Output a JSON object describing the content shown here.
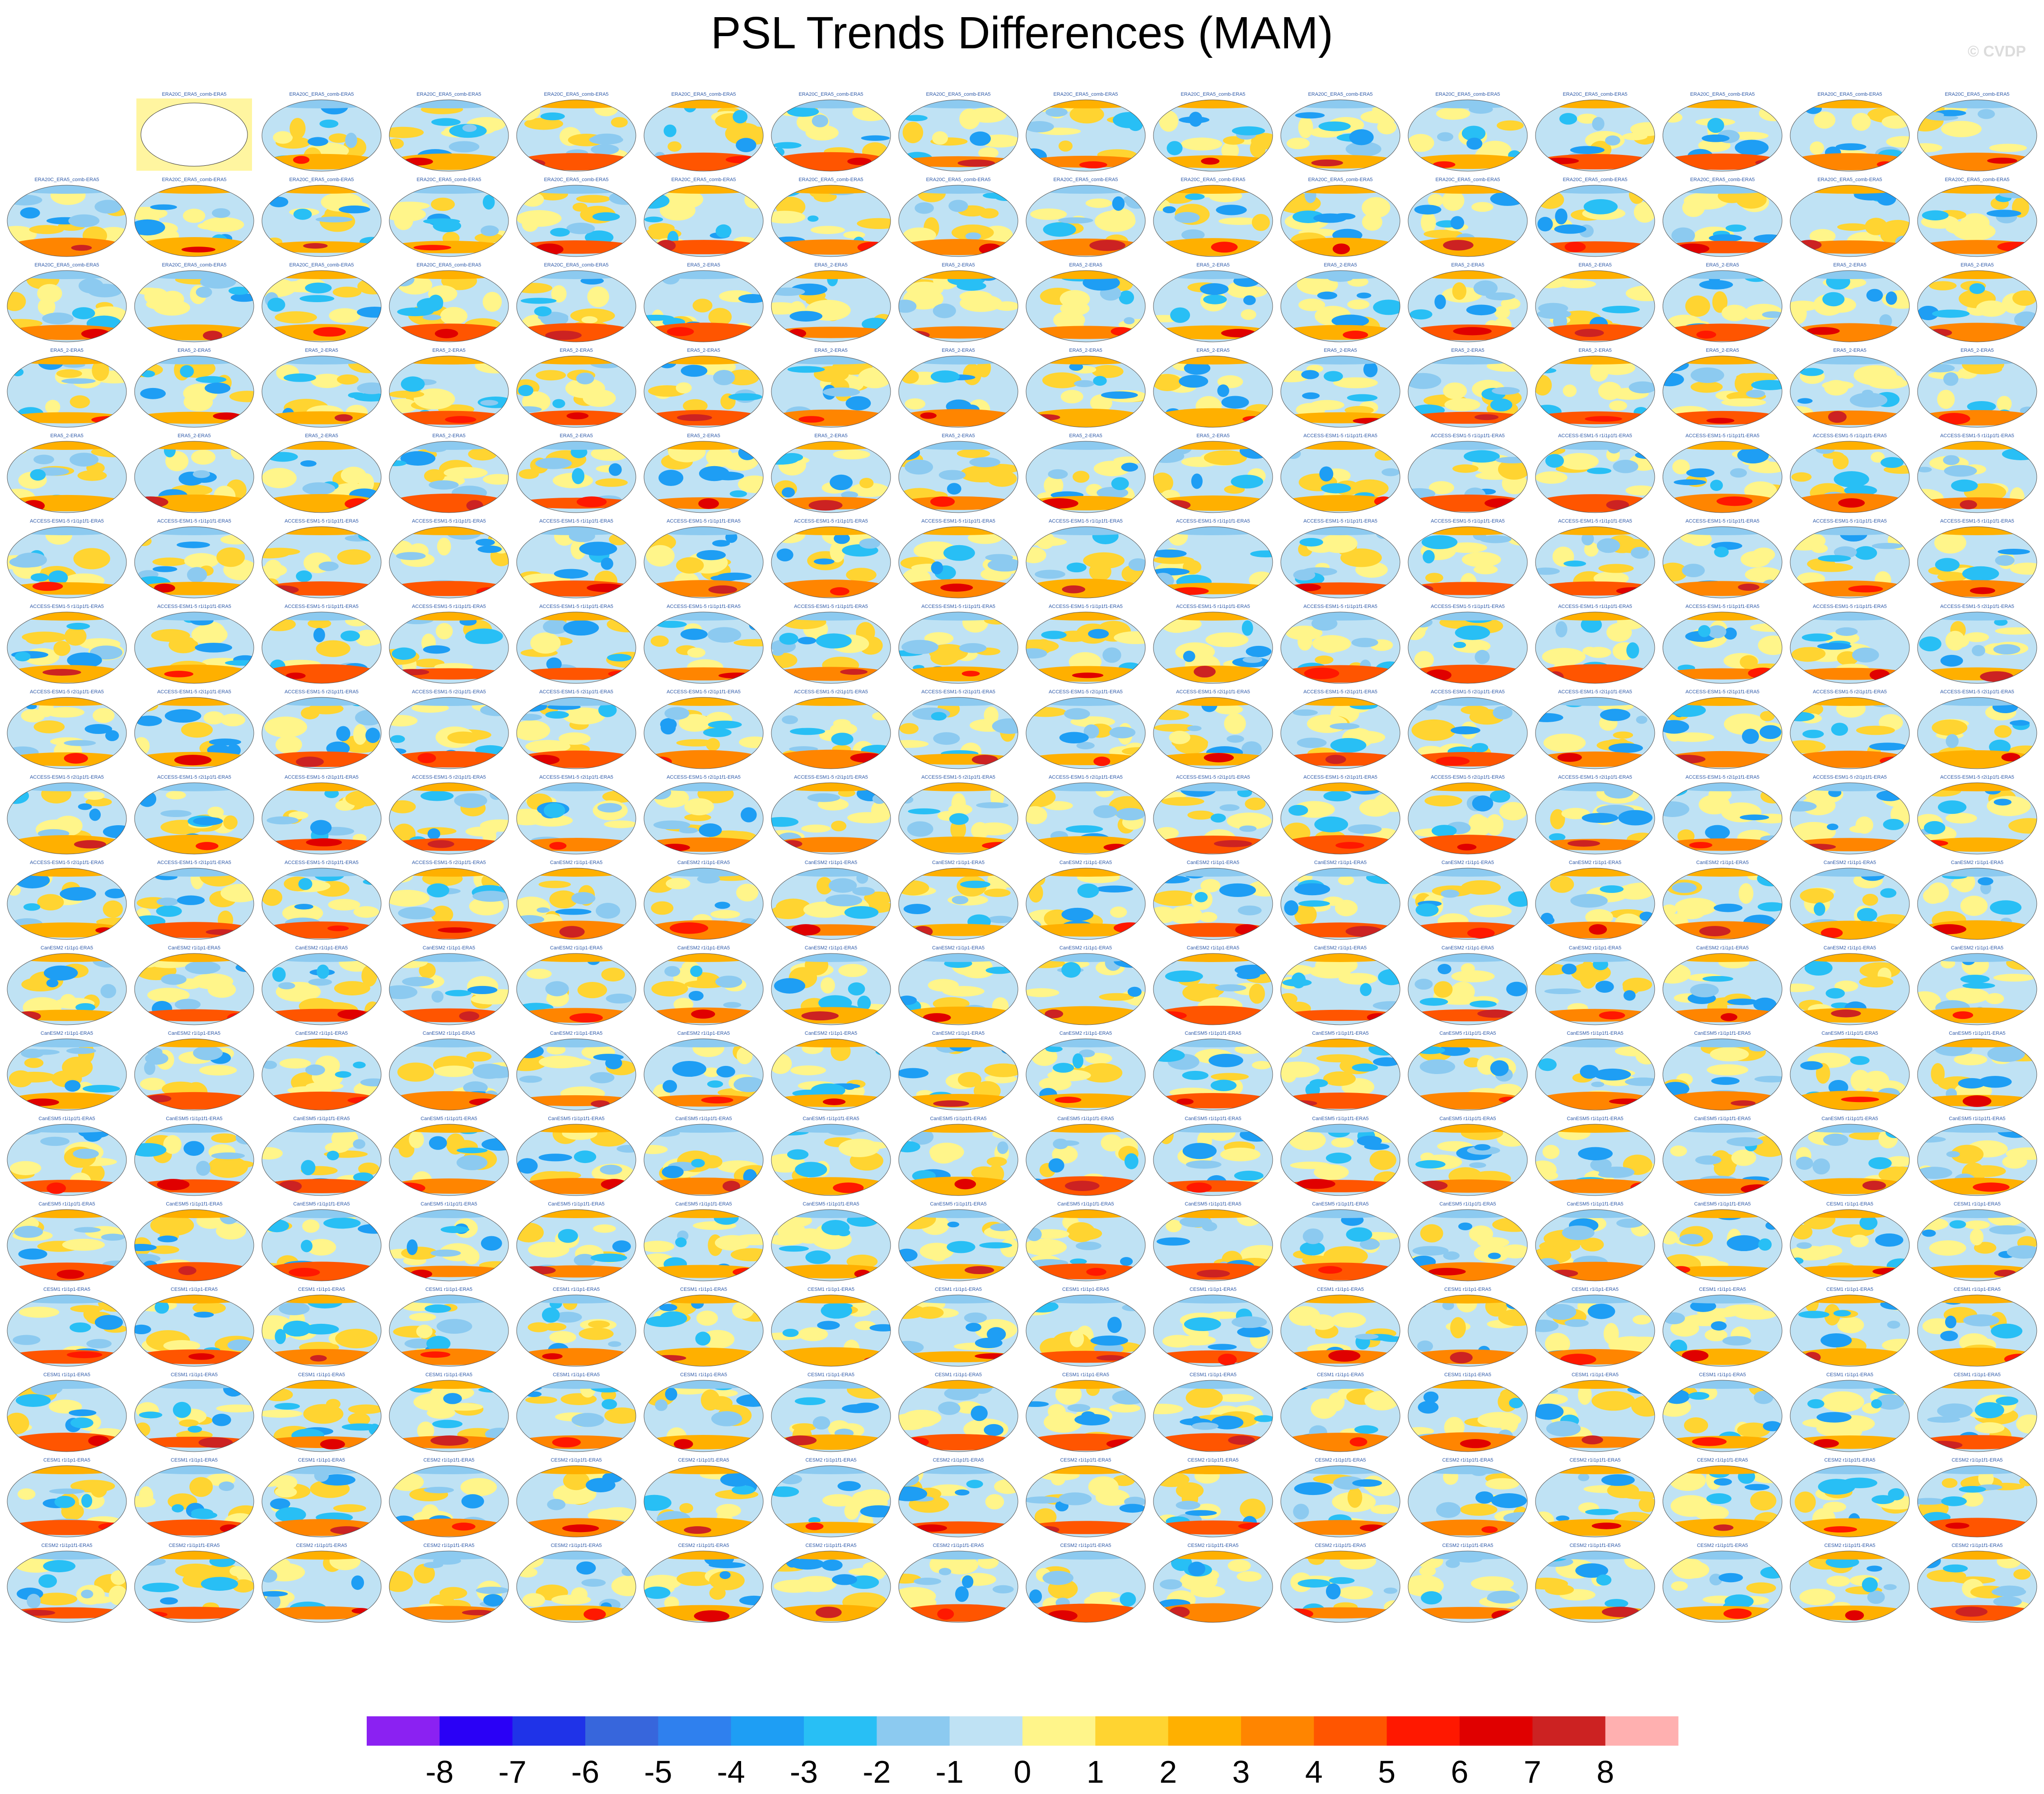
{
  "title": "PSL Trends Differences (MAM)",
  "watermark": "© CVDP",
  "chart_data": {
    "type": "heatmap",
    "title": "PSL Trends Differences (MAM)",
    "description_of_panels": "Grid of global map panels (18 rows x 16 columns) showing sea level pressure trend differences relative to ERA5",
    "first_panel": {
      "label": "ERA20C_ERA5_comb-ERA5",
      "background": "#fff5a0"
    },
    "panel_labels_visible": [
      "ERA20C_ERA5_comb-ERA5",
      "ERA5_2-ERA5",
      "ACCESS-ESM1-5 r1i1p1f1-ERA5",
      "ACCESS-ESM1-5 r2i1p1f1-ERA5",
      "CanESM2 r1i1p1-ERA5",
      "CanESM5 r1i1p1f1-ERA5",
      "CESM1 r1i1p1-ERA5",
      "CESM2 r1i1p1f1-ERA5"
    ],
    "colorbar": {
      "tick_labels": [
        "-8",
        "-7",
        "-6",
        "-5",
        "-4",
        "-3",
        "-2",
        "-1",
        "0",
        "1",
        "2",
        "3",
        "4",
        "5",
        "6",
        "7",
        "8"
      ],
      "colors": [
        "#8b21f2",
        "#2a00f6",
        "#1f33e8",
        "#3766dc",
        "#2f80ee",
        "#1e9ef4",
        "#28bff5",
        "#8ccaf0",
        "#bfe2f4",
        "#fff58a",
        "#ffd431",
        "#ffb000",
        "#ff8500",
        "#ff5500",
        "#ff1800",
        "#e00000",
        "#cc2222",
        "#ffb0b0"
      ],
      "range": [
        -9,
        9
      ]
    }
  }
}
